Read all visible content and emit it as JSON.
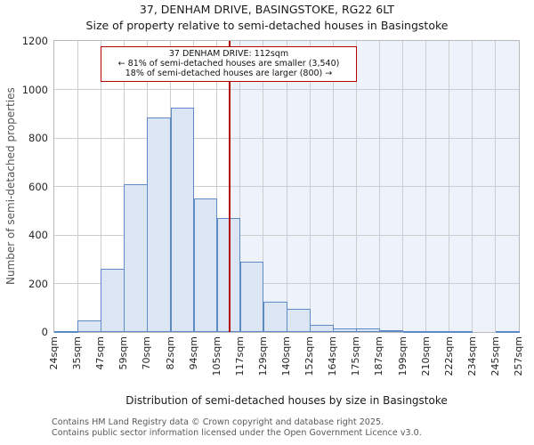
{
  "title": "37, DENHAM DRIVE, BASINGSTOKE, RG22 6LT",
  "subtitle": "Size of property relative to semi-detached houses in Basingstoke",
  "annotation": {
    "line1": "37 DENHAM DRIVE: 112sqm",
    "line2": "← 81% of semi-detached houses are smaller (3,540)",
    "line3": "18% of semi-detached houses are larger (800) →"
  },
  "footer": {
    "line1": "Contains HM Land Registry data © Crown copyright and database right 2025.",
    "line2": "Contains public sector information licensed under the Open Government Licence v3.0."
  },
  "chart_data": {
    "type": "bar",
    "title": "37, DENHAM DRIVE, BASINGSTOKE, RG22 6LT",
    "subtitle": "Size of property relative to semi-detached houses in Basingstoke",
    "xlabel": "Distribution of semi-detached houses by size in Basingstoke",
    "ylabel": "Number of semi-detached properties",
    "bin_labels": [
      "24sqm",
      "35sqm",
      "47sqm",
      "59sqm",
      "70sqm",
      "82sqm",
      "94sqm",
      "105sqm",
      "117sqm",
      "129sqm",
      "140sqm",
      "152sqm",
      "164sqm",
      "175sqm",
      "187sqm",
      "199sqm",
      "210sqm",
      "222sqm",
      "234sqm",
      "245sqm",
      "257sqm"
    ],
    "bin_edges_sqm": [
      24,
      35,
      47,
      59,
      70,
      82,
      94,
      105,
      117,
      129,
      140,
      152,
      164,
      175,
      187,
      199,
      210,
      222,
      234,
      245,
      257
    ],
    "values": [
      5,
      48,
      260,
      610,
      885,
      925,
      550,
      470,
      290,
      125,
      95,
      30,
      15,
      15,
      8,
      3,
      3,
      3,
      0,
      3
    ],
    "ylim": [
      0,
      1200
    ],
    "yticks": [
      0,
      200,
      400,
      600,
      800,
      1000,
      1200
    ],
    "grid": true,
    "legend": false,
    "marker": {
      "value_sqm": 112,
      "smaller_pct": 81,
      "smaller_count": 3540,
      "larger_pct": 18,
      "larger_count": 800
    },
    "colors": {
      "bar_fill": "#dbe5f4",
      "bar_border": "#5e8bc8",
      "marker_line": "#b30000",
      "annotation_border": "#b30000",
      "shade_right_of_marker": "#edf2fb",
      "grid": "#cdcdcd"
    }
  }
}
